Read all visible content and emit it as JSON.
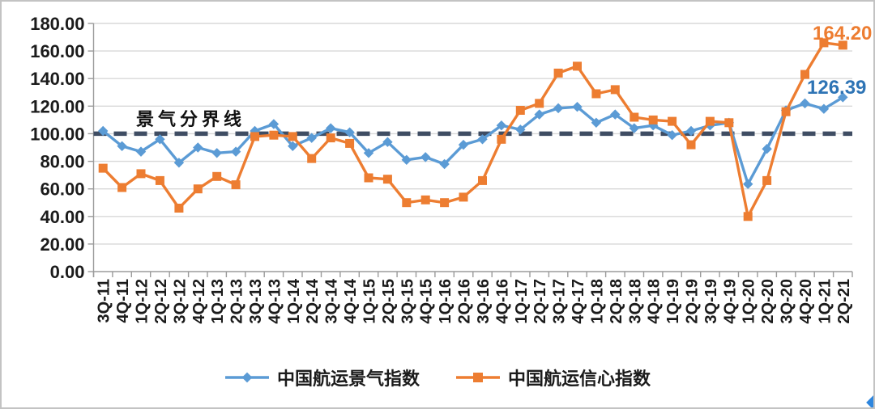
{
  "chart_data": {
    "type": "line",
    "categories": [
      "3Q-11",
      "4Q-11",
      "1Q-12",
      "2Q-12",
      "3Q-12",
      "4Q-12",
      "1Q-13",
      "2Q-13",
      "3Q-13",
      "4Q-13",
      "1Q-14",
      "2Q-14",
      "3Q-14",
      "4Q-14",
      "1Q-15",
      "2Q-15",
      "3Q-15",
      "4Q-15",
      "1Q-16",
      "2Q-16",
      "3Q-16",
      "4Q-16",
      "1Q-17",
      "2Q-17",
      "3Q-17",
      "4Q-17",
      "1Q-18",
      "2Q-18",
      "3Q-18",
      "4Q-18",
      "1Q-19",
      "2Q-19",
      "3Q-19",
      "4Q-19",
      "1Q-20",
      "2Q-20",
      "3Q-20",
      "4Q-20",
      "1Q-21",
      "2Q-21"
    ],
    "series": [
      {
        "name": "中国航运景气指数",
        "marker": "diamond",
        "color": "#5B9BD5",
        "values": [
          102,
          91,
          87,
          96,
          79,
          90,
          86,
          87,
          102,
          107,
          91,
          97,
          104,
          101,
          86,
          94,
          81,
          83,
          78,
          92,
          96,
          106,
          103,
          114,
          118.5,
          119.5,
          108,
          114,
          104,
          106,
          99,
          102,
          106,
          108,
          63.5,
          89,
          117,
          122,
          118,
          126.39
        ]
      },
      {
        "name": "中国航运信心指数",
        "marker": "square",
        "color": "#ED7D31",
        "values": [
          75,
          61,
          71,
          66,
          46,
          60,
          69,
          63,
          98,
          99,
          98,
          82,
          97,
          93,
          68,
          67,
          50,
          52,
          50,
          54,
          66,
          96,
          117,
          122,
          144,
          149,
          129,
          132,
          112,
          110,
          109,
          92,
          109,
          108,
          40,
          66,
          116,
          143,
          166,
          164.2
        ]
      }
    ],
    "ylim": [
      0,
      180
    ],
    "y_tick_step": 20,
    "y_tick_labels": [
      "0.00",
      "20.00",
      "40.00",
      "60.00",
      "80.00",
      "100.00",
      "120.00",
      "140.00",
      "160.00",
      "180.00"
    ],
    "reference_line": {
      "value": 100,
      "label": "景气分界线",
      "color": "#3F4D63"
    },
    "point_labels": {
      "confidence": {
        "text": "164.20",
        "color": "#ED7D31"
      },
      "prosperity": {
        "text": "126.39",
        "color": "#2E74B5"
      }
    },
    "legend_position": "bottom",
    "grid": true,
    "colors": {
      "grid": "#d8d8d8",
      "axis": "#9b9b9b",
      "tick_text": "#1b1b1b"
    }
  }
}
